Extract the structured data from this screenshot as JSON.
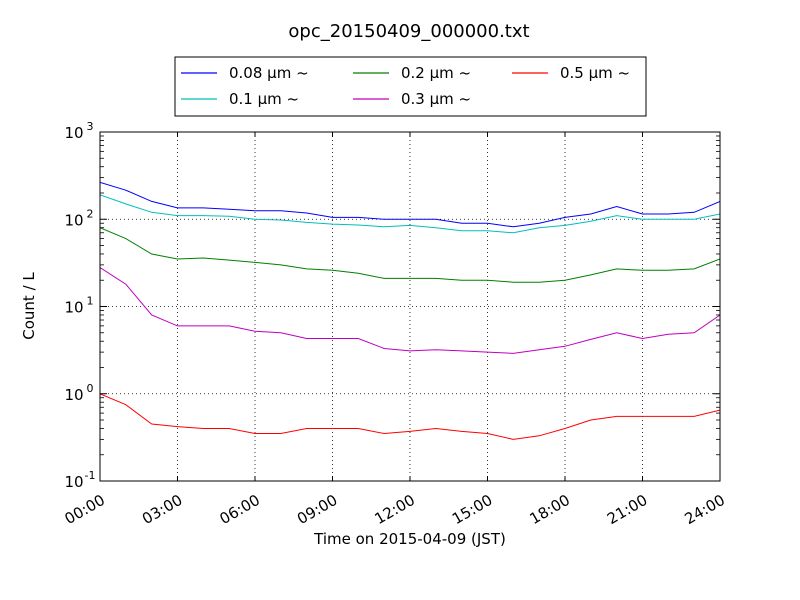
{
  "chart_data": {
    "type": "line",
    "title": "opc_20150409_000000.txt",
    "xlabel": "Time on 2015-04-09 (JST)",
    "ylabel": "Count / L",
    "y_scale": "log",
    "xlim": [
      "2015-04-09 00:00",
      "2015-04-10 00:00"
    ],
    "ylim": [
      0.1,
      1000
    ],
    "grid": true,
    "legend_position": "top (above plot), 3 columns",
    "x_ticks": [
      "00:00",
      "03:00",
      "06:00",
      "09:00",
      "12:00",
      "15:00",
      "18:00",
      "21:00",
      "24:00"
    ],
    "y_ticks": [
      {
        "value": 0.1,
        "base": "10",
        "exp": "-1"
      },
      {
        "value": 1,
        "base": "10",
        "exp": "0"
      },
      {
        "value": 10,
        "base": "10",
        "exp": "1"
      },
      {
        "value": 100,
        "base": "10",
        "exp": "2"
      },
      {
        "value": 1000,
        "base": "10",
        "exp": "3"
      }
    ],
    "x": [
      "00:00",
      "01:00",
      "02:00",
      "03:00",
      "04:00",
      "05:00",
      "06:00",
      "07:00",
      "08:00",
      "09:00",
      "10:00",
      "11:00",
      "12:00",
      "13:00",
      "14:00",
      "15:00",
      "16:00",
      "17:00",
      "18:00",
      "19:00",
      "20:00",
      "21:00",
      "22:00",
      "23:00",
      "24:00"
    ],
    "series": [
      {
        "name": "0.08 μm ~",
        "color": "#0000ff",
        "values": [
          265,
          215,
          160,
          135,
          135,
          130,
          125,
          125,
          118,
          105,
          105,
          100,
          100,
          100,
          90,
          90,
          82,
          90,
          105,
          115,
          140,
          115,
          115,
          120,
          160
        ]
      },
      {
        "name": "0.1 μm ~",
        "color": "#00bfbf",
        "values": [
          190,
          150,
          120,
          110,
          110,
          108,
          100,
          98,
          92,
          88,
          86,
          82,
          85,
          80,
          74,
          74,
          70,
          80,
          85,
          95,
          110,
          100,
          100,
          100,
          115
        ]
      },
      {
        "name": "0.2 μm ~",
        "color": "#008000",
        "values": [
          80,
          60,
          40,
          35,
          36,
          34,
          32,
          30,
          27,
          26,
          24,
          21,
          21,
          21,
          20,
          20,
          19,
          19,
          20,
          23,
          27,
          26,
          26,
          27,
          35
        ]
      },
      {
        "name": "0.3 μm ~",
        "color": "#bf00bf",
        "values": [
          28,
          18,
          8,
          6,
          6,
          6,
          5.2,
          5,
          4.3,
          4.3,
          4.3,
          3.3,
          3.1,
          3.2,
          3.1,
          3.0,
          2.9,
          3.2,
          3.5,
          4.2,
          5.0,
          4.3,
          4.8,
          5.0,
          8.0
        ]
      },
      {
        "name": "0.5 μm ~",
        "color": "#ff0000",
        "values": [
          1.0,
          0.75,
          0.45,
          0.42,
          0.4,
          0.4,
          0.35,
          0.35,
          0.4,
          0.4,
          0.4,
          0.35,
          0.37,
          0.4,
          0.37,
          0.35,
          0.3,
          0.33,
          0.4,
          0.5,
          0.55,
          0.55,
          0.55,
          0.55,
          0.65
        ]
      }
    ]
  }
}
